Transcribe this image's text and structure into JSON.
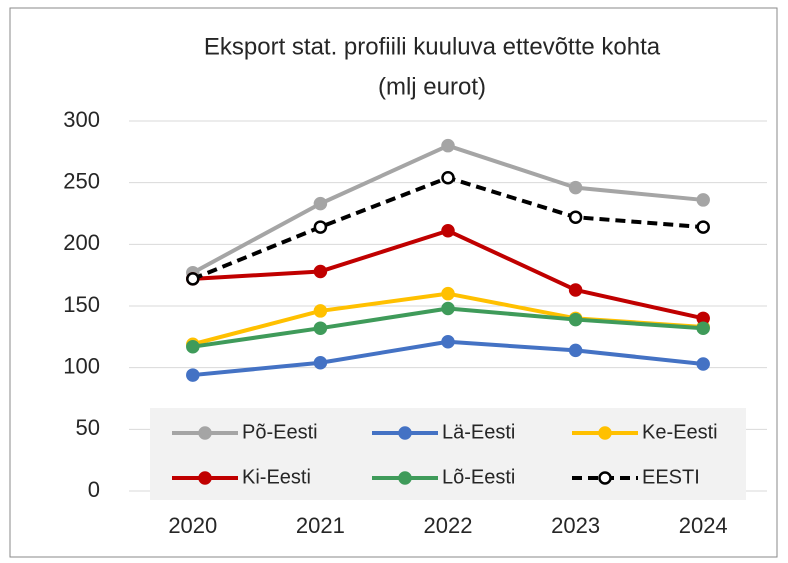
{
  "chart_data": {
    "type": "line",
    "title": [
      "Eksport stat. profiili kuuluva ettevõtte kohta",
      "(mlj eurot)"
    ],
    "categories": [
      "2020",
      "2021",
      "2022",
      "2023",
      "2024"
    ],
    "series": [
      {
        "name": "Põ-Eesti",
        "color": "#a5a5a5",
        "values": [
          177,
          233,
          280,
          246,
          236
        ]
      },
      {
        "name": "Lä-Eesti",
        "color": "#4472c4",
        "values": [
          94,
          104,
          121,
          114,
          103
        ]
      },
      {
        "name": "Ke-Eesti",
        "color": "#ffc000",
        "values": [
          119,
          146,
          160,
          140,
          133
        ]
      },
      {
        "name": "Ki-Eesti",
        "color": "#c00000",
        "values": [
          172,
          178,
          211,
          163,
          140
        ]
      },
      {
        "name": "Lõ-Eesti",
        "color": "#3f9b5a",
        "values": [
          117,
          132,
          148,
          139,
          132
        ]
      },
      {
        "name": "EESTI",
        "color": "#000000",
        "dashed": true,
        "marker_fill": "#ffffff",
        "values": [
          172,
          214,
          254,
          222,
          214
        ]
      }
    ],
    "ylim": [
      0,
      300
    ],
    "yticks": [
      0,
      50,
      100,
      150,
      200,
      250,
      300
    ],
    "grid": true,
    "legend": "bottom"
  }
}
